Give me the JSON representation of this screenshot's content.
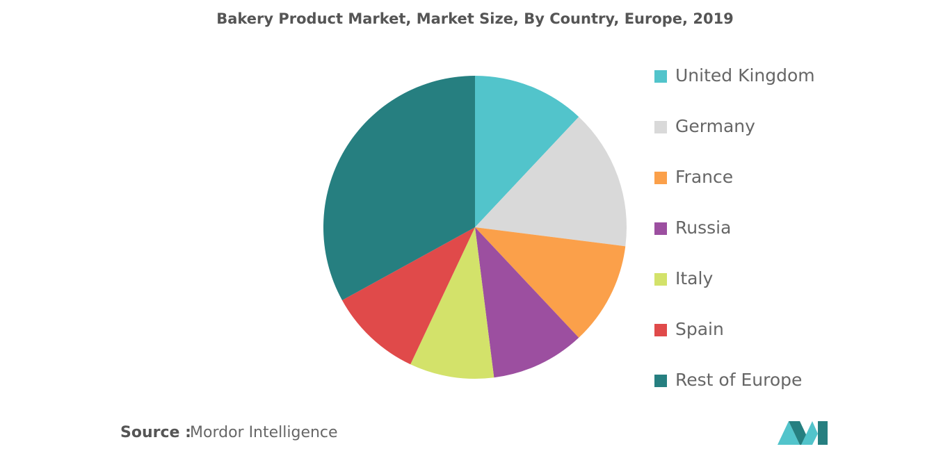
{
  "chart_data": {
    "type": "pie",
    "title": "Bakery Product Market, Market Size, By Country, Europe, 2019",
    "categories": [
      "United Kingdom",
      "Germany",
      "France",
      "Russia",
      "Italy",
      "Spain",
      "Rest of Europe"
    ],
    "values": [
      12,
      15,
      11,
      10,
      9,
      10,
      33
    ],
    "colors": [
      "#52c4cb",
      "#d9d9d9",
      "#fba04a",
      "#9c4fa0",
      "#d3e26a",
      "#e04a4a",
      "#267f80"
    ]
  },
  "source": {
    "label": "Source :",
    "text": "Mordor Intelligence"
  }
}
